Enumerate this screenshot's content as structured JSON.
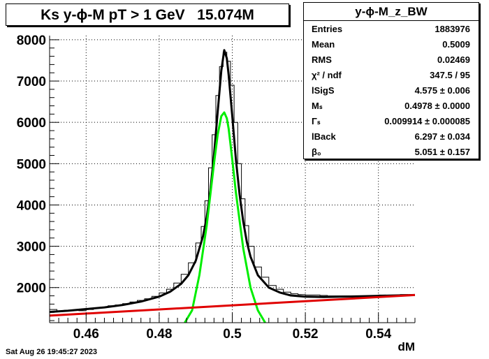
{
  "title": "Ks y-ϕ-M pT > 1 GeV   15.074M",
  "stats": {
    "name": "y-ϕ-M_z_BW",
    "rows": [
      {
        "label": "Entries",
        "value": "1883976"
      },
      {
        "label": "Mean",
        "value": "0.5009"
      },
      {
        "label": "RMS",
        "value": "0.02469"
      },
      {
        "label": "χ² / ndf",
        "value": "347.5 / 95"
      },
      {
        "label": "lSigS",
        "value": "4.575 ± 0.006"
      },
      {
        "label": "Mₛ",
        "value": "0.4978 ± 0.0000"
      },
      {
        "label": "Γₛ",
        "value": "0.009914 ± 0.000085"
      },
      {
        "label": "lBack",
        "value": "6.297 ± 0.034"
      },
      {
        "label": "β₀",
        "value": "5.051 ± 0.157"
      }
    ]
  },
  "datestamp": "Sat Aug 26 19:45:27 2023",
  "chart_data": {
    "type": "line",
    "title": "Ks y-ϕ-M pT > 1 GeV   15.074M",
    "xlabel": "dM",
    "ylabel": "",
    "xlim": [
      0.45,
      0.55
    ],
    "ylim": [
      1150,
      8100
    ],
    "x_ticks": [
      0.46,
      0.48,
      0.5,
      0.52,
      0.54
    ],
    "y_ticks": [
      2000,
      3000,
      4000,
      5000,
      6000,
      7000,
      8000
    ],
    "grid": true,
    "histogram": {
      "x": [
        0.451,
        0.453,
        0.455,
        0.457,
        0.459,
        0.461,
        0.463,
        0.465,
        0.467,
        0.469,
        0.471,
        0.473,
        0.475,
        0.477,
        0.479,
        0.481,
        0.483,
        0.485,
        0.487,
        0.489,
        0.491,
        0.492,
        0.493,
        0.494,
        0.495,
        0.496,
        0.497,
        0.498,
        0.499,
        0.5,
        0.501,
        0.502,
        0.503,
        0.504,
        0.505,
        0.507,
        0.509,
        0.511,
        0.513,
        0.515,
        0.517,
        0.519,
        0.521,
        0.523,
        0.525,
        0.527,
        0.529,
        0.531,
        0.533,
        0.535,
        0.537,
        0.539,
        0.541,
        0.543,
        0.545,
        0.547,
        0.549
      ],
      "y": [
        1470,
        1430,
        1450,
        1460,
        1440,
        1470,
        1500,
        1530,
        1560,
        1580,
        1610,
        1650,
        1690,
        1730,
        1790,
        1870,
        1960,
        2110,
        2320,
        2600,
        3080,
        3480,
        4100,
        4900,
        5700,
        6650,
        7350,
        7700,
        7480,
        6900,
        6000,
        5000,
        4150,
        3500,
        3000,
        2500,
        2250,
        2050,
        1960,
        1890,
        1850,
        1830,
        1820,
        1820,
        1810,
        1800,
        1800,
        1800,
        1780,
        1790,
        1800,
        1780,
        1820,
        1800,
        1810,
        1830,
        1820
      ]
    },
    "series": [
      {
        "name": "",
        "color": "#000000",
        "x": [
          0.45,
          0.455,
          0.46,
          0.465,
          0.47,
          0.475,
          0.48,
          0.483,
          0.486,
          0.488,
          0.49,
          0.492,
          0.493,
          0.494,
          0.495,
          0.496,
          0.497,
          0.4978,
          0.4985,
          0.499,
          0.5,
          0.501,
          0.502,
          0.503,
          0.504,
          0.505,
          0.507,
          0.51,
          0.513,
          0.516,
          0.52,
          0.525,
          0.53,
          0.535,
          0.54,
          0.545,
          0.55
        ],
        "y": [
          1410,
          1440,
          1480,
          1520,
          1580,
          1660,
          1780,
          1900,
          2090,
          2300,
          2650,
          3250,
          3700,
          4350,
          5200,
          6250,
          7250,
          7750,
          7550,
          7150,
          6150,
          5100,
          4250,
          3600,
          3100,
          2750,
          2300,
          2000,
          1880,
          1810,
          1780,
          1770,
          1780,
          1790,
          1800,
          1810,
          1820
        ]
      },
      {
        "name": "",
        "color": "#00ee00",
        "x": [
          0.487,
          0.489,
          0.491,
          0.493,
          0.495,
          0.496,
          0.497,
          0.4978,
          0.4985,
          0.499,
          0.5,
          0.501,
          0.503,
          0.505,
          0.507,
          0.509
        ],
        "y": [
          1150,
          1450,
          2300,
          3500,
          5000,
          5700,
          6150,
          6240,
          6100,
          5850,
          5100,
          4300,
          2950,
          2000,
          1450,
          1150
        ]
      },
      {
        "name": "",
        "color": "#e00000",
        "x": [
          0.45,
          0.55
        ],
        "y": [
          1320,
          1820
        ]
      }
    ]
  }
}
